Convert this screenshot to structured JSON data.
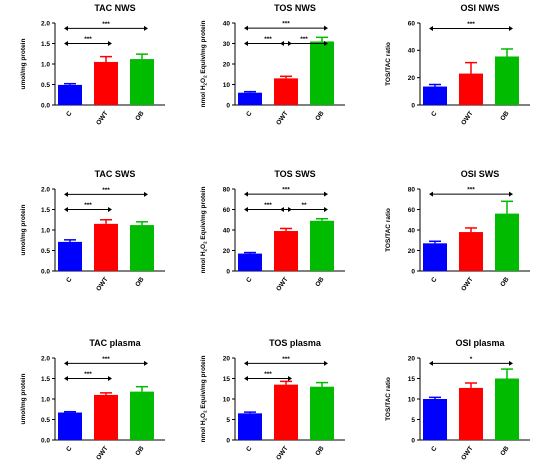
{
  "chart_data": [
    {
      "type": "bar",
      "title": "TAC NWS",
      "ylabel": "umol/mg protein",
      "categories": [
        "C",
        "OWT",
        "OB"
      ],
      "values": [
        0.49,
        1.05,
        1.12
      ],
      "errors": [
        0.03,
        0.13,
        0.12
      ],
      "ylim": [
        0,
        2.0
      ],
      "ticks": [
        "0.0",
        "0.5",
        "1.0",
        "1.5",
        "2.0"
      ],
      "colors": [
        "#0000ff",
        "#ff0000",
        "#00bb00"
      ],
      "sig": [
        {
          "from": 0,
          "to": 2,
          "label": "***",
          "y": 1.87
        },
        {
          "from": 0,
          "to": 1,
          "label": "***",
          "y": 1.5
        }
      ]
    },
    {
      "type": "bar",
      "title": "TOS NWS",
      "ylabel": "nmol H2O2 Equiv/mg protein",
      "categories": [
        "C",
        "OWT",
        "OB"
      ],
      "values": [
        6,
        13,
        31
      ],
      "errors": [
        0.5,
        1,
        2
      ],
      "ylim": [
        0,
        40
      ],
      "ticks": [
        "0",
        "10",
        "20",
        "30",
        "40"
      ],
      "colors": [
        "#0000ff",
        "#ff0000",
        "#00bb00"
      ],
      "sig": [
        {
          "from": 0,
          "to": 2,
          "label": "***",
          "y": 37.5
        },
        {
          "from": 0,
          "to": 1,
          "label": "***",
          "y": 30
        },
        {
          "from": 1,
          "to": 2,
          "label": "***",
          "y": 30
        }
      ]
    },
    {
      "type": "bar",
      "title": "OSI NWS",
      "ylabel": "TOS/TAC ratio",
      "categories": [
        "C",
        "OWT",
        "OB"
      ],
      "values": [
        13.5,
        23,
        35.5
      ],
      "errors": [
        1.5,
        8,
        5.5
      ],
      "ylim": [
        0,
        60
      ],
      "ticks": [
        "0",
        "20",
        "40",
        "60"
      ],
      "colors": [
        "#0000ff",
        "#ff0000",
        "#00bb00"
      ],
      "sig": [
        {
          "from": 0,
          "to": 2,
          "label": "***",
          "y": 56
        }
      ]
    },
    {
      "type": "bar",
      "title": "TAC SWS",
      "ylabel": "umol/mg protein",
      "categories": [
        "C",
        "OWT",
        "OB"
      ],
      "values": [
        0.71,
        1.15,
        1.12
      ],
      "errors": [
        0.05,
        0.1,
        0.08
      ],
      "ylim": [
        0,
        2.0
      ],
      "ticks": [
        "0.0",
        "0.5",
        "1.0",
        "1.5",
        "2.0"
      ],
      "colors": [
        "#0000ff",
        "#ff0000",
        "#00bb00"
      ],
      "sig": [
        {
          "from": 0,
          "to": 2,
          "label": "***",
          "y": 1.87
        },
        {
          "from": 0,
          "to": 1,
          "label": "***",
          "y": 1.5
        }
      ]
    },
    {
      "type": "bar",
      "title": "TOS SWS",
      "ylabel": "nmol H2O2 Equiv/mg protein",
      "categories": [
        "C",
        "OWT",
        "OB"
      ],
      "values": [
        17,
        39,
        49
      ],
      "errors": [
        1,
        2.5,
        2
      ],
      "ylim": [
        0,
        80
      ],
      "ticks": [
        "0",
        "20",
        "40",
        "60",
        "80"
      ],
      "colors": [
        "#0000ff",
        "#ff0000",
        "#00bb00"
      ],
      "sig": [
        {
          "from": 0,
          "to": 2,
          "label": "***",
          "y": 75
        },
        {
          "from": 0,
          "to": 1,
          "label": "***",
          "y": 60
        },
        {
          "from": 1,
          "to": 2,
          "label": "**",
          "y": 60
        }
      ]
    },
    {
      "type": "bar",
      "title": "OSI SWS",
      "ylabel": "TOS/TAC ratio",
      "categories": [
        "C",
        "OWT",
        "OB"
      ],
      "values": [
        27,
        38,
        56
      ],
      "errors": [
        2,
        4,
        12
      ],
      "ylim": [
        0,
        80
      ],
      "ticks": [
        "0",
        "20",
        "40",
        "60",
        "80"
      ],
      "colors": [
        "#0000ff",
        "#ff0000",
        "#00bb00"
      ],
      "sig": [
        {
          "from": 0,
          "to": 2,
          "label": "***",
          "y": 75
        }
      ]
    },
    {
      "type": "bar",
      "title": "TAC plasma",
      "ylabel": "umol/mg protein",
      "categories": [
        "C",
        "OWT",
        "OB"
      ],
      "values": [
        0.67,
        1.1,
        1.18
      ],
      "errors": [
        0.02,
        0.05,
        0.12
      ],
      "ylim": [
        0,
        2.0
      ],
      "ticks": [
        "0.0",
        "0.5",
        "1.0",
        "1.5",
        "2.0"
      ],
      "colors": [
        "#0000ff",
        "#ff0000",
        "#00bb00"
      ],
      "sig": [
        {
          "from": 0,
          "to": 2,
          "label": "***",
          "y": 1.87
        },
        {
          "from": 0,
          "to": 1,
          "label": "***",
          "y": 1.5
        }
      ]
    },
    {
      "type": "bar",
      "title": "TOS plasma",
      "ylabel": "nmol H2O2 Equiv/mg protein",
      "categories": [
        "C",
        "OWT",
        "OB"
      ],
      "values": [
        6.5,
        13.5,
        13
      ],
      "errors": [
        0.3,
        0.8,
        1
      ],
      "ylim": [
        0,
        20
      ],
      "ticks": [
        "0",
        "5",
        "10",
        "15",
        "20"
      ],
      "colors": [
        "#0000ff",
        "#ff0000",
        "#00bb00"
      ],
      "sig": [
        {
          "from": 0,
          "to": 2,
          "label": "***",
          "y": 18.7
        },
        {
          "from": 0,
          "to": 1,
          "label": "***",
          "y": 15
        }
      ]
    },
    {
      "type": "bar",
      "title": "OSI plasma",
      "ylabel": "TOS/TAC ratio",
      "categories": [
        "C",
        "OWT",
        "OB"
      ],
      "values": [
        10,
        12.7,
        15
      ],
      "errors": [
        0.4,
        1.2,
        2.3
      ],
      "ylim": [
        0,
        20
      ],
      "ticks": [
        "0",
        "5",
        "10",
        "15",
        "20"
      ],
      "colors": [
        "#0000ff",
        "#ff0000",
        "#00bb00"
      ],
      "sig": [
        {
          "from": 0,
          "to": 2,
          "label": "*",
          "y": 18.7
        }
      ]
    }
  ]
}
